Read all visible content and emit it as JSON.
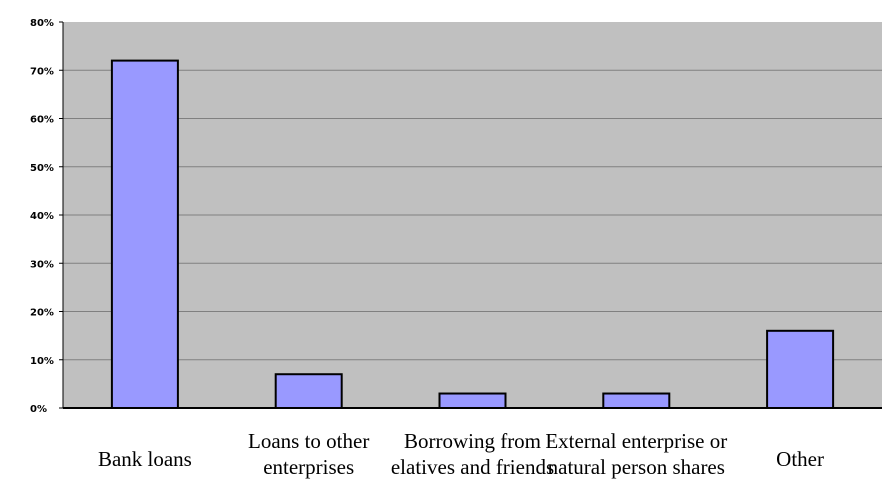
{
  "chart_data": {
    "type": "bar",
    "title": "",
    "xlabel": "",
    "ylabel": "",
    "categories": [
      [
        "Bank loans"
      ],
      [
        "Loans to other",
        "enterprises"
      ],
      [
        "Borrowing from",
        "elatives and friends"
      ],
      [
        "External enterprise or",
        "natural person shares"
      ],
      [
        "Other"
      ]
    ],
    "values": [
      72,
      7,
      3,
      3,
      16
    ],
    "ylim": [
      0,
      80
    ],
    "yticks": [
      "0%",
      "10%",
      "20%",
      "30%",
      "40%",
      "50%",
      "60%",
      "70%",
      "80%"
    ],
    "grid": true,
    "colors": {
      "plot_bg": "#c0c0c0",
      "bar_fill": "#9999ff",
      "bar_stroke": "#000000",
      "grid": "#808080"
    }
  }
}
